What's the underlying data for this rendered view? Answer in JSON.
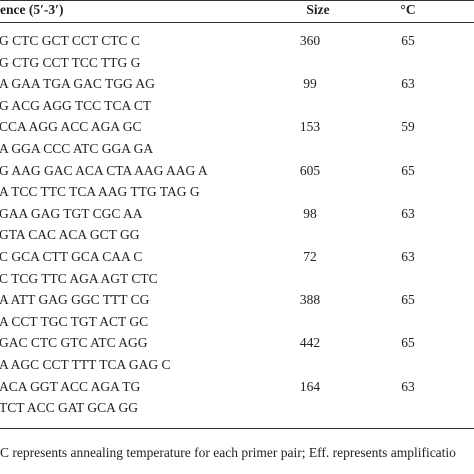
{
  "table": {
    "header": [
      "ence (5′-3′)",
      "Size",
      "°C"
    ],
    "rows": [
      [
        "G CTC GCT CCT CTC C",
        "G CTG CCT TCC TTG G",
        "360",
        "65"
      ],
      [
        "A GAA TGA GAC TGG AG",
        "G ACG AGG TCC TCA CT",
        "99",
        "63"
      ],
      [
        "CCA AGG ACC AGA GC",
        "A GGA CCC ATC GGA GA",
        "153",
        "59"
      ],
      [
        "G AAG GAC ACA CTA AAG AAG A",
        "A TCC TTC TCA AAG TTG TAG G",
        "605",
        "65"
      ],
      [
        "GAA GAG TGT CGC AA",
        "GTA CAC ACA GCT GG",
        "98",
        "63"
      ],
      [
        "C GCA CTT GCA CAA C",
        "C TCG TTC AGA AGT CTC",
        "72",
        "63"
      ],
      [
        "A ATT GAG GGC TTT CG",
        "A CCT TGC TGT ACT GC",
        "388",
        "65"
      ],
      [
        "GAC CTC GTC ATC AGG",
        "A AGC CCT TTT TCA GAG C",
        "442",
        "65"
      ],
      [
        "ACA GGT ACC AGA TG",
        "TCT ACC GAT GCA GG",
        "164",
        "63"
      ]
    ]
  },
  "footnote": "C represents annealing temperature for each primer pair; Eff. represents amplificatio"
}
